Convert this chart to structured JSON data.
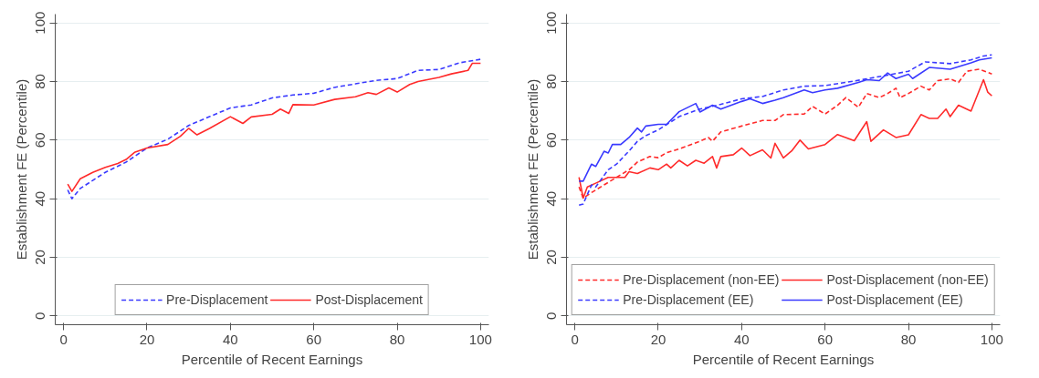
{
  "chart_data": [
    {
      "type": "line",
      "xlabel": "Percentile of Recent Earnings",
      "ylabel": "Establishment FE (Percentile)",
      "xlim": [
        -2,
        102
      ],
      "ylim": [
        -3,
        103
      ],
      "xticks": [
        0,
        20,
        40,
        60,
        80,
        100
      ],
      "yticks": [
        0,
        20,
        40,
        60,
        80,
        100
      ],
      "grid": "y",
      "legend": "bottom",
      "series": [
        {
          "name": "Pre-Displacement",
          "color": "#3a3aff",
          "line_style": "dashed",
          "x": [
            1,
            2,
            4,
            10,
            15,
            20,
            25,
            30,
            35,
            40,
            45,
            50,
            55,
            60,
            65,
            70,
            75,
            80,
            85,
            90,
            95,
            100
          ],
          "values": [
            43,
            40,
            43.5,
            49,
            52.5,
            57.3,
            60.3,
            65,
            68,
            71,
            72,
            74.4,
            75.4,
            76,
            78,
            79.2,
            80.4,
            81,
            83.8,
            84.1,
            86.4,
            87.6
          ]
        },
        {
          "name": "Post-Displacement",
          "color": "#ff2a2a",
          "line_style": "solid",
          "x": [
            1,
            2,
            4,
            7,
            10,
            13,
            15,
            17,
            20,
            25,
            28,
            30,
            32,
            35,
            40,
            43,
            45,
            50,
            52,
            54,
            55,
            60,
            65,
            70,
            73,
            75,
            78,
            80,
            83,
            85,
            90,
            93,
            97,
            98,
            100
          ],
          "values": [
            45,
            42.5,
            46.8,
            49,
            50.7,
            52,
            53.4,
            55.8,
            57.3,
            58.5,
            61.3,
            64,
            61.8,
            64,
            68,
            65.7,
            67.9,
            68.8,
            70.6,
            69.1,
            72.1,
            72,
            73.9,
            74.8,
            76.2,
            75.6,
            77.8,
            76.4,
            79,
            80,
            81.4,
            82.6,
            83.8,
            86.2,
            86.2
          ]
        }
      ]
    },
    {
      "type": "line",
      "xlabel": "Percentile of Recent Earnings",
      "ylabel": "Establishment FE (Percentile)",
      "xlim": [
        -2,
        102
      ],
      "ylim": [
        -3,
        103
      ],
      "xticks": [
        0,
        20,
        40,
        60,
        80,
        100
      ],
      "yticks": [
        0,
        20,
        40,
        60,
        80,
        100
      ],
      "grid": "y",
      "legend": "bottom",
      "series": [
        {
          "name": "Pre-Displacement (non-EE)",
          "color": "#ff2a2a",
          "line_style": "dashed",
          "x": [
            1,
            2,
            4,
            7,
            10,
            13,
            15,
            18,
            20,
            22,
            25,
            30,
            32,
            33,
            35,
            40,
            45,
            48,
            50,
            55,
            57,
            60,
            63,
            65,
            68,
            70,
            73,
            75,
            77,
            78,
            80,
            83,
            85,
            87,
            90,
            92,
            94,
            97,
            100
          ],
          "values": [
            44,
            40.2,
            42.1,
            44.7,
            47.3,
            49.9,
            52.5,
            54.4,
            54,
            55.7,
            57,
            59.6,
            60.9,
            59.6,
            62.8,
            64.8,
            66.7,
            66.7,
            68.7,
            68.9,
            71.5,
            68.9,
            71.9,
            74.5,
            71.2,
            75.9,
            74.5,
            75.9,
            77.7,
            74.5,
            75.9,
            78.4,
            77.1,
            80.3,
            80.9,
            79.7,
            83.5,
            84.2,
            82.6
          ]
        },
        {
          "name": "Post-Displacement (non-EE)",
          "color": "#ff2a2a",
          "line_style": "solid",
          "x": [
            1,
            2,
            3,
            5,
            8,
            12,
            13,
            15,
            18,
            20,
            22,
            23,
            25,
            27,
            29,
            31,
            33,
            34,
            35,
            38,
            40,
            42,
            45,
            47,
            48,
            50,
            52,
            54,
            56,
            60,
            63,
            67,
            70,
            71,
            74,
            77,
            80,
            83,
            85,
            87,
            89,
            90,
            92,
            95,
            98,
            99,
            100
          ],
          "values": [
            47.3,
            40.2,
            44,
            45.3,
            47.3,
            47.3,
            49.2,
            48.6,
            50.5,
            49.9,
            51.8,
            50.5,
            53.1,
            51.2,
            53.1,
            52.1,
            54.4,
            50.5,
            54.4,
            55,
            57.3,
            54.7,
            56.7,
            53.9,
            58.9,
            53.9,
            56.3,
            60,
            57,
            58.5,
            61.9,
            59.8,
            66.3,
            59.6,
            63.5,
            60.9,
            61.8,
            68.7,
            67.4,
            67.4,
            70.6,
            68,
            71.9,
            69.9,
            80.6,
            76.4,
            75.1
          ]
        },
        {
          "name": "Pre-Displacement (EE)",
          "color": "#3a3aff",
          "line_style": "dashed",
          "x": [
            1,
            2,
            4,
            5,
            8,
            10,
            13,
            15,
            17,
            20,
            25,
            30,
            35,
            40,
            45,
            50,
            55,
            60,
            65,
            70,
            75,
            80,
            84,
            90,
            95,
            98,
            100
          ],
          "values": [
            37.8,
            38.2,
            44.7,
            44,
            49.9,
            51.8,
            56.3,
            59.6,
            61.5,
            63.5,
            68,
            70.6,
            72.2,
            74.1,
            74.9,
            77.1,
            78.4,
            78.6,
            79.7,
            80.9,
            82.2,
            83.5,
            86.7,
            86.1,
            87.4,
            88.7,
            89.1
          ]
        },
        {
          "name": "Post-Displacement (EE)",
          "color": "#3a3aff",
          "line_style": "solid",
          "x": [
            1,
            2,
            4,
            5,
            7,
            8,
            9,
            11,
            13,
            15,
            16,
            17,
            20,
            22,
            25,
            29,
            30,
            33,
            35,
            40,
            42,
            45,
            48,
            50,
            55,
            57,
            60,
            63,
            68,
            70,
            73,
            75,
            77,
            80,
            81,
            85,
            90,
            95,
            97,
            100
          ],
          "values": [
            46,
            46,
            51.8,
            51,
            56.2,
            55.6,
            58.5,
            58.5,
            60.9,
            64.1,
            62.8,
            64.8,
            65.4,
            65.4,
            69.7,
            72.5,
            69.6,
            71.9,
            70.6,
            73.2,
            74.1,
            72.5,
            73.6,
            74.5,
            77.1,
            76.2,
            77.1,
            77.7,
            79.7,
            80.6,
            80.3,
            82.9,
            81,
            82.5,
            81,
            84.8,
            84.2,
            86.4,
            87.4,
            88.1
          ]
        }
      ]
    }
  ]
}
